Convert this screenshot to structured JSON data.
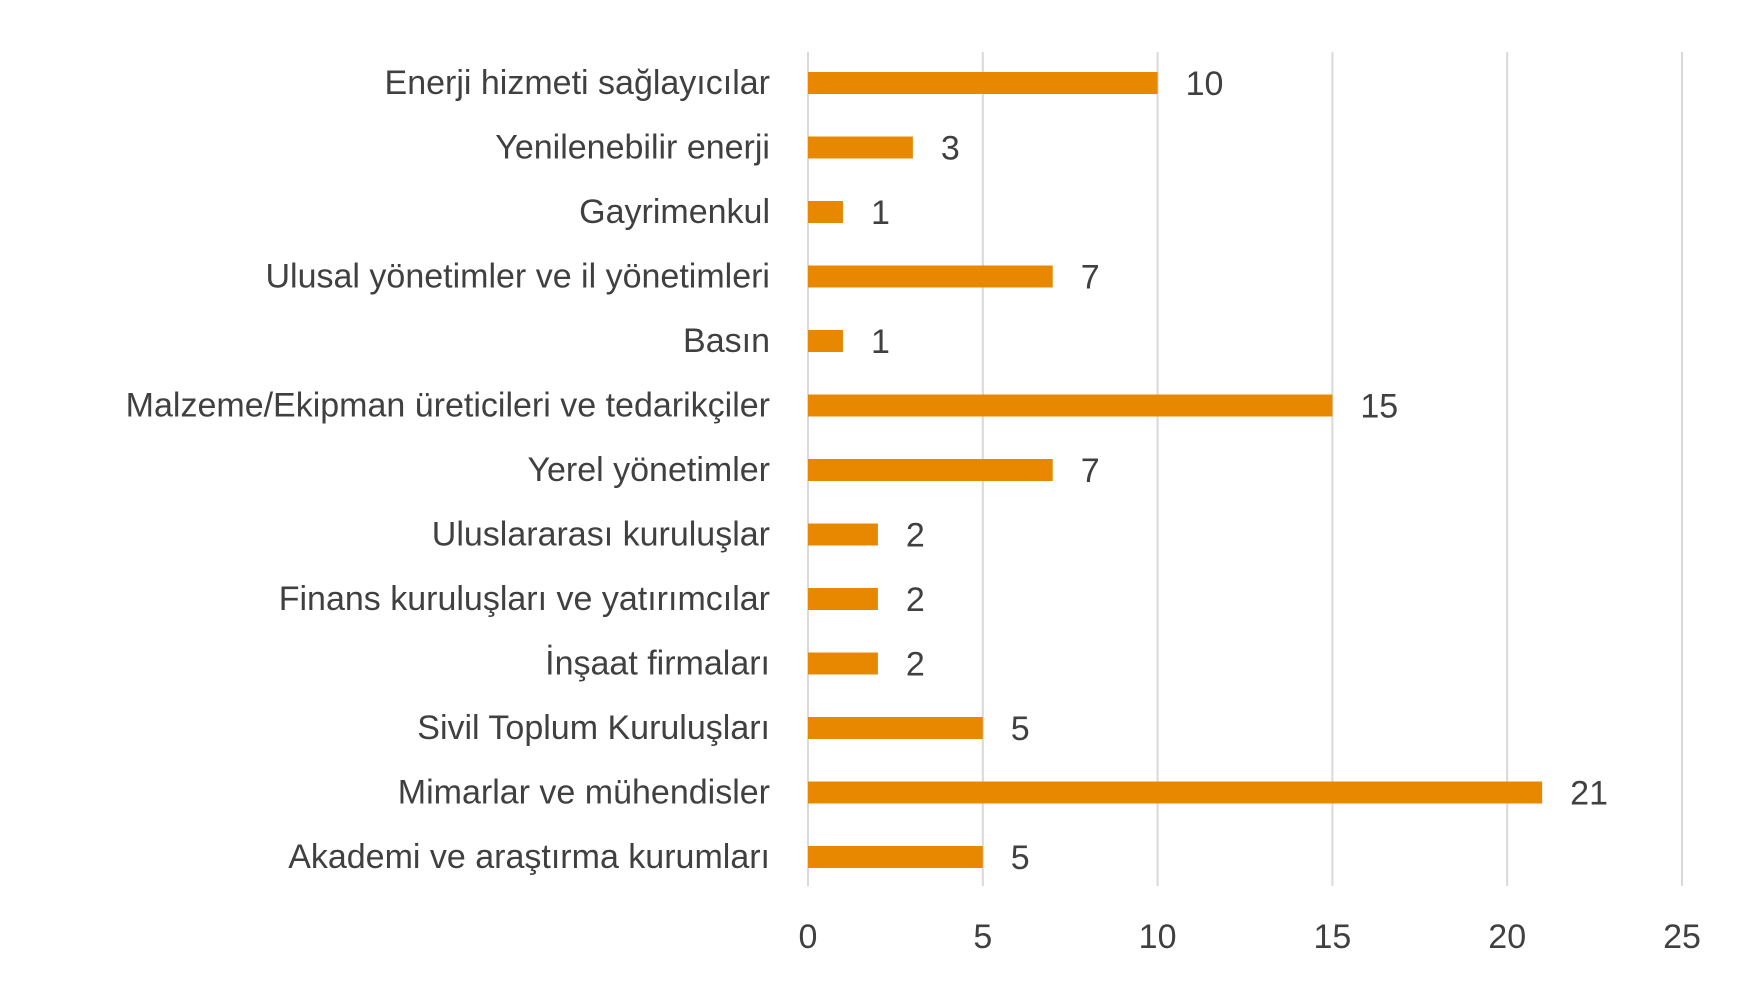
{
  "chart_data": {
    "type": "bar",
    "orientation": "horizontal",
    "categories": [
      "Enerji hizmeti sağlayıcılar",
      "Yenilenebilir enerji",
      "Gayrimenkul",
      "Ulusal yönetimler ve il yönetimleri",
      "Basın",
      "Malzeme/Ekipman üreticileri ve tedarikçiler",
      "Yerel yönetimler",
      "Uluslararası kuruluşlar",
      "Finans kuruluşları ve yatırımcılar",
      "İnşaat firmaları",
      "Sivil Toplum Kuruluşları",
      "Mimarlar ve mühendisler",
      "Akademi ve araştırma kurumları"
    ],
    "values": [
      10,
      3,
      1,
      7,
      1,
      15,
      7,
      2,
      2,
      2,
      5,
      21,
      5
    ],
    "xlim": [
      0,
      25
    ],
    "xticks": [
      0,
      5,
      10,
      15,
      20,
      25
    ],
    "grid": "vertical",
    "data_labels": true,
    "colors": {
      "bar": "#E88800",
      "grid": "#D9D9D9",
      "text": "#404040"
    }
  }
}
